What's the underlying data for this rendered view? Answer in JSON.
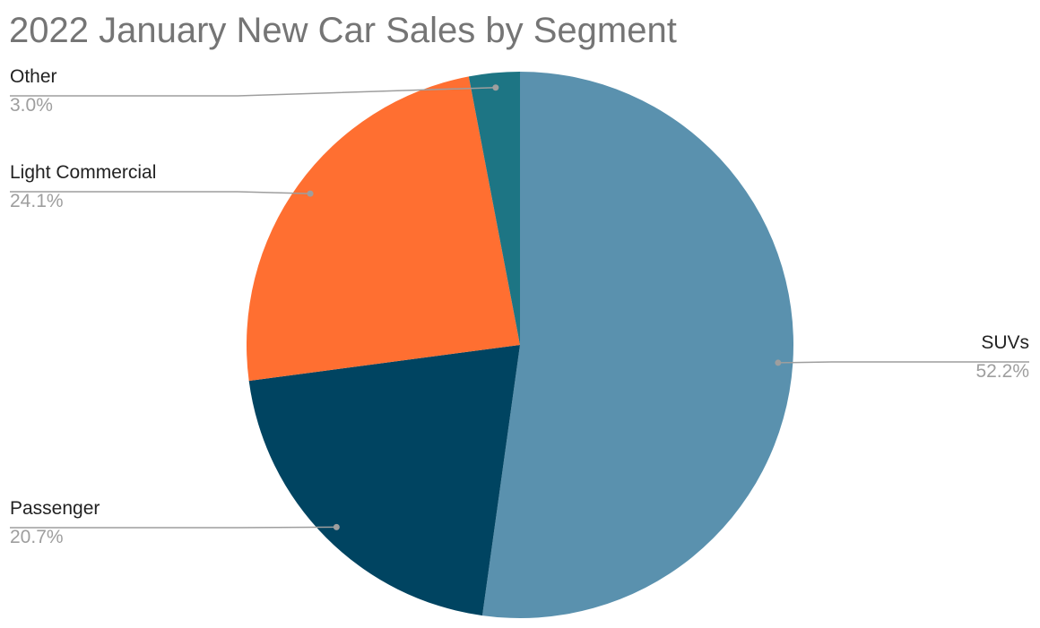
{
  "chart_data": {
    "type": "pie",
    "title": "2022 January New Car Sales by Segment",
    "slices": [
      {
        "label": "SUVs",
        "value": 52.2,
        "display": "52.2%",
        "color": "#5a91ae"
      },
      {
        "label": "Passenger",
        "value": 20.7,
        "display": "20.7%",
        "color": "#004461"
      },
      {
        "label": "Light Commercial",
        "value": 24.1,
        "display": "24.1%",
        "color": "#ff6f31"
      },
      {
        "label": "Other",
        "value": 3.0,
        "display": "3.0%",
        "color": "#1d7584"
      }
    ],
    "start_angle": "12 o'clock",
    "direction": "clockwise",
    "legend": "none",
    "labels": "outside with leader lines"
  }
}
